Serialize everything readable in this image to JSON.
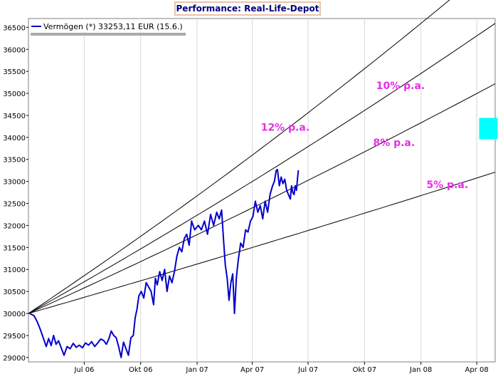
{
  "chart_data": {
    "type": "line",
    "title": "Performance: Real-Life-Depot",
    "xlabel": "",
    "ylabel": "",
    "x_range": [
      "2006-04-01",
      "2008-05-01"
    ],
    "ylim": [
      28900,
      36700
    ],
    "y_ticks": [
      29000,
      29500,
      30000,
      30500,
      31000,
      31500,
      32000,
      32500,
      33000,
      33500,
      34000,
      34500,
      35000,
      35500,
      36000,
      36500
    ],
    "x_ticks": [
      {
        "date": "2006-07-01",
        "label": "Jul 06"
      },
      {
        "date": "2006-10-01",
        "label": "Okt 06"
      },
      {
        "date": "2007-01-01",
        "label": "Jan 07"
      },
      {
        "date": "2007-04-01",
        "label": "Apr 07"
      },
      {
        "date": "2007-07-01",
        "label": "Jul 07"
      },
      {
        "date": "2007-10-01",
        "label": "Okt 07"
      },
      {
        "date": "2008-01-01",
        "label": "Jan 08"
      },
      {
        "date": "2008-04-01",
        "label": "Apr 08"
      }
    ],
    "grid": "vertical",
    "legend_position": "top-left",
    "series": [
      {
        "name": "Vermögen (*) 33253,11 EUR (15.6.)",
        "color": "#0000cc",
        "points": [
          [
            "2006-04-03",
            30000
          ],
          [
            "2006-04-10",
            29950
          ],
          [
            "2006-04-15",
            29820
          ],
          [
            "2006-04-20",
            29650
          ],
          [
            "2006-04-25",
            29450
          ],
          [
            "2006-04-30",
            29250
          ],
          [
            "2006-05-04",
            29430
          ],
          [
            "2006-05-08",
            29270
          ],
          [
            "2006-05-12",
            29500
          ],
          [
            "2006-05-16",
            29300
          ],
          [
            "2006-05-20",
            29380
          ],
          [
            "2006-05-25",
            29200
          ],
          [
            "2006-05-29",
            29050
          ],
          [
            "2006-06-03",
            29250
          ],
          [
            "2006-06-08",
            29200
          ],
          [
            "2006-06-13",
            29320
          ],
          [
            "2006-06-18",
            29230
          ],
          [
            "2006-06-23",
            29280
          ],
          [
            "2006-06-28",
            29220
          ],
          [
            "2006-07-03",
            29330
          ],
          [
            "2006-07-08",
            29280
          ],
          [
            "2006-07-13",
            29360
          ],
          [
            "2006-07-18",
            29250
          ],
          [
            "2006-07-23",
            29330
          ],
          [
            "2006-07-28",
            29420
          ],
          [
            "2006-08-02",
            29380
          ],
          [
            "2006-08-06",
            29300
          ],
          [
            "2006-08-10",
            29420
          ],
          [
            "2006-08-14",
            29600
          ],
          [
            "2006-08-18",
            29500
          ],
          [
            "2006-08-22",
            29450
          ],
          [
            "2006-08-26",
            29250
          ],
          [
            "2006-08-30",
            29000
          ],
          [
            "2006-09-03",
            29350
          ],
          [
            "2006-09-07",
            29200
          ],
          [
            "2006-09-11",
            29050
          ],
          [
            "2006-09-15",
            29450
          ],
          [
            "2006-09-19",
            29500
          ],
          [
            "2006-09-22",
            29900
          ],
          [
            "2006-09-25",
            30100
          ],
          [
            "2006-09-28",
            30400
          ],
          [
            "2006-10-02",
            30500
          ],
          [
            "2006-10-06",
            30350
          ],
          [
            "2006-10-10",
            30700
          ],
          [
            "2006-10-14",
            30600
          ],
          [
            "2006-10-18",
            30500
          ],
          [
            "2006-10-22",
            30200
          ],
          [
            "2006-10-25",
            30800
          ],
          [
            "2006-10-28",
            30650
          ],
          [
            "2006-11-01",
            30950
          ],
          [
            "2006-11-05",
            30750
          ],
          [
            "2006-11-09",
            31000
          ],
          [
            "2006-11-13",
            30500
          ],
          [
            "2006-11-17",
            30850
          ],
          [
            "2006-11-21",
            30700
          ],
          [
            "2006-11-25",
            30950
          ],
          [
            "2006-11-29",
            31300
          ],
          [
            "2006-12-03",
            31500
          ],
          [
            "2006-12-07",
            31400
          ],
          [
            "2006-12-11",
            31700
          ],
          [
            "2006-12-15",
            31800
          ],
          [
            "2006-12-19",
            31550
          ],
          [
            "2006-12-23",
            32100
          ],
          [
            "2006-12-28",
            31900
          ],
          [
            "2007-01-03",
            32000
          ],
          [
            "2007-01-08",
            31900
          ],
          [
            "2007-01-13",
            32100
          ],
          [
            "2007-01-18",
            31800
          ],
          [
            "2007-01-23",
            32250
          ],
          [
            "2007-01-28",
            32000
          ],
          [
            "2007-02-02",
            32300
          ],
          [
            "2007-02-06",
            32150
          ],
          [
            "2007-02-10",
            32350
          ],
          [
            "2007-02-13",
            31700
          ],
          [
            "2007-02-16",
            31100
          ],
          [
            "2007-02-19",
            30800
          ],
          [
            "2007-02-22",
            30300
          ],
          [
            "2007-02-25",
            30700
          ],
          [
            "2007-02-28",
            30900
          ],
          [
            "2007-03-03",
            30000
          ],
          [
            "2007-03-06",
            30800
          ],
          [
            "2007-03-09",
            31200
          ],
          [
            "2007-03-13",
            31600
          ],
          [
            "2007-03-17",
            31500
          ],
          [
            "2007-03-21",
            31900
          ],
          [
            "2007-03-25",
            31850
          ],
          [
            "2007-03-29",
            32100
          ],
          [
            "2007-04-02",
            32200
          ],
          [
            "2007-04-06",
            32550
          ],
          [
            "2007-04-10",
            32300
          ],
          [
            "2007-04-14",
            32450
          ],
          [
            "2007-04-18",
            32150
          ],
          [
            "2007-04-22",
            32550
          ],
          [
            "2007-04-26",
            32300
          ],
          [
            "2007-04-30",
            32700
          ],
          [
            "2007-05-04",
            32900
          ],
          [
            "2007-05-07",
            33000
          ],
          [
            "2007-05-10",
            33250
          ],
          [
            "2007-05-12",
            33270
          ],
          [
            "2007-05-15",
            32900
          ],
          [
            "2007-05-18",
            33100
          ],
          [
            "2007-05-21",
            32950
          ],
          [
            "2007-05-24",
            33050
          ],
          [
            "2007-05-27",
            32800
          ],
          [
            "2007-05-30",
            32700
          ],
          [
            "2007-06-02",
            32600
          ],
          [
            "2007-06-04",
            32900
          ],
          [
            "2007-06-06",
            32750
          ],
          [
            "2007-06-08",
            32700
          ],
          [
            "2007-06-10",
            32900
          ],
          [
            "2007-06-12",
            32800
          ],
          [
            "2007-06-15",
            33253
          ]
        ]
      }
    ],
    "trend_lines": [
      {
        "label": "5% p.a.",
        "rate": 0.05,
        "start_date": "2006-04-01",
        "start_value": 30000,
        "color": "#000000"
      },
      {
        "label": "8% p.a.",
        "rate": 0.08,
        "start_date": "2006-04-01",
        "start_value": 30000,
        "color": "#000000"
      },
      {
        "label": "10% p.a.",
        "rate": 0.1,
        "start_date": "2006-04-01",
        "start_value": 30000,
        "color": "#000000"
      },
      {
        "label": "12% p.a.",
        "rate": 0.12,
        "start_date": "2006-04-01",
        "start_value": 30000,
        "color": "#000000"
      }
    ],
    "annotations": [
      {
        "text": "10% p.a.",
        "date": "2007-10-20",
        "value": 35100,
        "color": "#e62ee6"
      },
      {
        "text": "12% p.a.",
        "date": "2007-04-15",
        "value": 34150,
        "color": "#e62ee6"
      },
      {
        "text": "8% p.a.",
        "date": "2007-10-15",
        "value": 33800,
        "color": "#e62ee6"
      },
      {
        "text": "5% p.a.",
        "date": "2008-01-10",
        "value": 32850,
        "color": "#e62ee6"
      }
    ],
    "marker": {
      "shape": "square",
      "color": "#00ffff",
      "date": "2008-04-20",
      "value": 34200
    }
  }
}
